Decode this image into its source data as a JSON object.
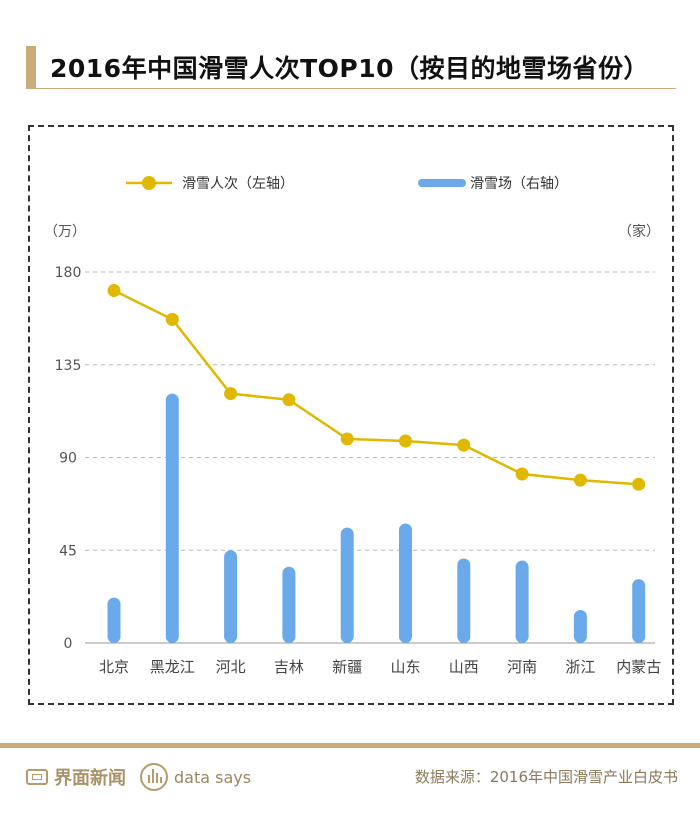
{
  "title": "2016年中国滑雪人次TOP10（按目的地雪场省份）",
  "footer": {
    "brand": "界面新闻",
    "tagline": "data says",
    "source": "数据来源：2016年中国滑雪产业白皮书"
  },
  "colors": {
    "line": "#e0b800",
    "bar": "#6aaaea",
    "accent": "#c8ad79"
  },
  "chart_data": {
    "type": "bar+line",
    "categories": [
      "北京",
      "黑龙江",
      "河北",
      "吉林",
      "新疆",
      "山东",
      "山西",
      "河南",
      "浙江",
      "内蒙古"
    ],
    "series": [
      {
        "name": "滑雪人次（左轴）",
        "type": "line",
        "axis": "left",
        "values": [
          171,
          157,
          121,
          118,
          99,
          98,
          96,
          82,
          79,
          77
        ]
      },
      {
        "name": "滑雪场（右轴）",
        "type": "bar",
        "axis": "right",
        "values": [
          22,
          121,
          45,
          37,
          56,
          58,
          41,
          40,
          16,
          31
        ]
      }
    ],
    "y_left": {
      "unit": "（万）",
      "ticks": [
        "180",
        "135",
        "90",
        "45",
        "0"
      ],
      "range": [
        0,
        180
      ]
    },
    "y_right": {
      "unit": "（家）",
      "range": [
        0,
        180
      ]
    },
    "grid": true,
    "legend_position": "top"
  }
}
